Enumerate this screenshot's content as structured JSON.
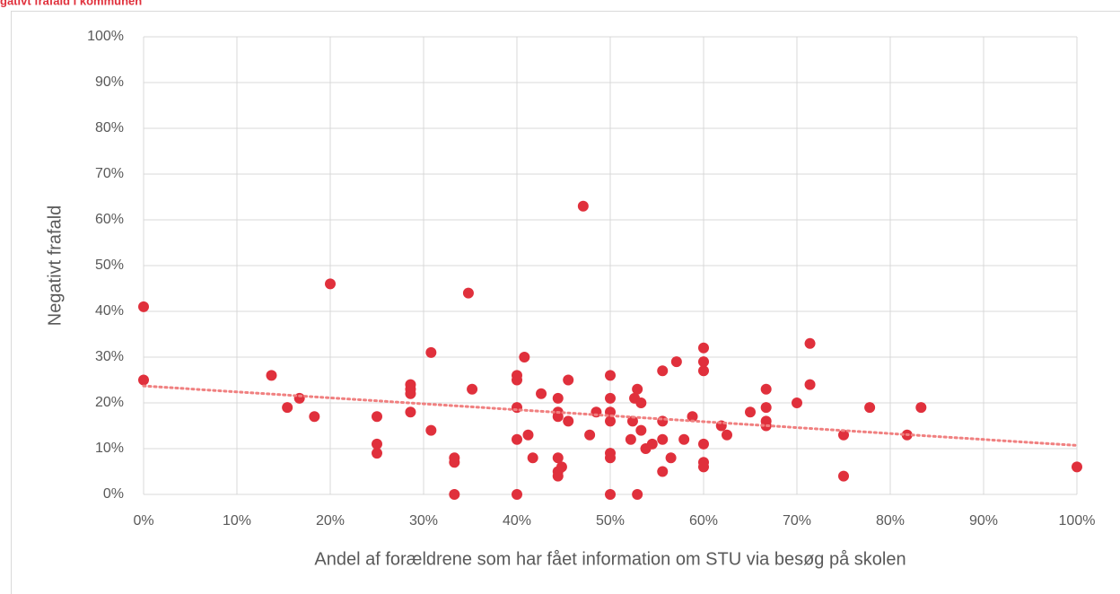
{
  "chart_data": {
    "type": "scatter",
    "title": "gativt frafald i kommunen",
    "x_label": "Andel af forældrene som har fået information om STU via besøg på skolen",
    "y_label": "Negativt frafald",
    "color": "#e0303c",
    "x": [
      0,
      0,
      13.7,
      15.4,
      16.7,
      18.3,
      20,
      25,
      25,
      25,
      28.6,
      28.6,
      28.6,
      28.6,
      30.8,
      30.8,
      34.8,
      35.2,
      33.3,
      33.3,
      33.3,
      40,
      40,
      40,
      40,
      40,
      40.8,
      41.2,
      41.7,
      42.6,
      44.4,
      44.4,
      44.4,
      44.4,
      44.4,
      44.4,
      44.8,
      45.5,
      45.5,
      47.1,
      47.8,
      48.5,
      50,
      50,
      50,
      50,
      50,
      50,
      50,
      52.2,
      52.4,
      52.6,
      52.9,
      52.9,
      53.3,
      53.3,
      53.8,
      54.5,
      55.6,
      55.6,
      55.6,
      55.6,
      56.5,
      57.1,
      57.9,
      58.8,
      60,
      60,
      60,
      60,
      60,
      60,
      61.9,
      62.5,
      65,
      66.7,
      66.7,
      66.7,
      66.7,
      70,
      71.4,
      71.4,
      75,
      75,
      77.8,
      81.8,
      83.3,
      100
    ],
    "values": [
      41,
      25,
      26,
      19,
      21,
      17,
      46,
      17,
      11,
      9,
      24,
      23,
      22,
      18,
      31,
      14,
      44,
      23,
      8,
      7,
      0,
      26,
      25,
      19,
      12,
      0,
      30,
      13,
      8,
      22,
      21,
      18,
      17,
      8,
      5,
      4,
      6,
      25,
      16,
      63,
      13,
      18,
      26,
      21,
      18,
      16,
      9,
      8,
      0,
      12,
      16,
      21,
      23,
      0,
      20,
      14,
      10,
      11,
      27,
      16,
      12,
      5,
      8,
      29,
      12,
      17,
      32,
      29,
      27,
      11,
      7,
      6,
      15,
      13,
      18,
      23,
      19,
      16,
      15,
      20,
      33,
      24,
      13,
      4,
      19,
      13,
      19,
      6
    ],
    "trendline": {
      "color": "#f08080",
      "x": [
        0,
        100
      ],
      "y": [
        23.7,
        10.7
      ]
    },
    "xlim": [
      0,
      100
    ],
    "ylim": [
      0,
      100
    ],
    "xticks": [
      {
        "value": 0,
        "label": "0%"
      },
      {
        "value": 10,
        "label": "10%"
      },
      {
        "value": 20,
        "label": "20%"
      },
      {
        "value": 30,
        "label": "30%"
      },
      {
        "value": 40,
        "label": "40%"
      },
      {
        "value": 50,
        "label": "50%"
      },
      {
        "value": 60,
        "label": "60%"
      },
      {
        "value": 70,
        "label": "70%"
      },
      {
        "value": 80,
        "label": "80%"
      },
      {
        "value": 90,
        "label": "90%"
      },
      {
        "value": 100,
        "label": "100%"
      }
    ],
    "yticks": [
      {
        "value": 0,
        "label": "0%"
      },
      {
        "value": 10,
        "label": "10%"
      },
      {
        "value": 20,
        "label": "20%"
      },
      {
        "value": 30,
        "label": "30%"
      },
      {
        "value": 40,
        "label": "40%"
      },
      {
        "value": 50,
        "label": "50%"
      },
      {
        "value": 60,
        "label": "60%"
      },
      {
        "value": 70,
        "label": "70%"
      },
      {
        "value": 80,
        "label": "80%"
      },
      {
        "value": 90,
        "label": "90%"
      },
      {
        "value": 100,
        "label": "100%"
      }
    ],
    "grid": true
  }
}
